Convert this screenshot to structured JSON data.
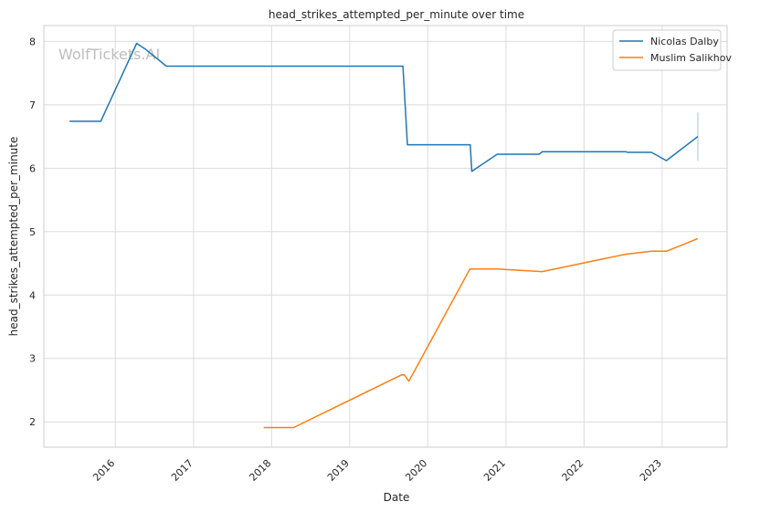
{
  "watermark": "WolfTickets.AI",
  "chart_data": {
    "type": "line",
    "title": "head_strikes_attempted_per_minute over time",
    "xlabel": "Date",
    "ylabel": "head_strikes_attempted_per_minute",
    "x_axis_type": "date",
    "xlim": [
      "2015-02-01",
      "2023-11-01"
    ],
    "ylim": [
      1.6,
      8.25
    ],
    "x_ticks": [
      {
        "date": "2016-01-01",
        "label": "2016"
      },
      {
        "date": "2017-01-01",
        "label": "2017"
      },
      {
        "date": "2018-01-01",
        "label": "2018"
      },
      {
        "date": "2019-01-01",
        "label": "2019"
      },
      {
        "date": "2020-01-01",
        "label": "2020"
      },
      {
        "date": "2021-01-01",
        "label": "2021"
      },
      {
        "date": "2022-01-01",
        "label": "2022"
      },
      {
        "date": "2023-01-01",
        "label": "2023"
      }
    ],
    "y_ticks": [
      2,
      3,
      4,
      5,
      6,
      7,
      8
    ],
    "grid": true,
    "legend_position": "top-right",
    "series": [
      {
        "name": "Nicolas Dalby",
        "color": "#1f77b4",
        "points": [
          [
            "2015-06-01",
            6.74
          ],
          [
            "2015-10-25",
            6.74
          ],
          [
            "2016-04-10",
            7.97
          ],
          [
            "2016-05-20",
            7.88
          ],
          [
            "2016-08-27",
            7.61
          ],
          [
            "2019-09-07",
            7.61
          ],
          [
            "2019-09-28",
            6.37
          ],
          [
            "2020-07-18",
            6.37
          ],
          [
            "2020-07-25",
            5.95
          ],
          [
            "2020-11-21",
            6.22
          ],
          [
            "2021-06-05",
            6.22
          ],
          [
            "2021-06-19",
            6.26
          ],
          [
            "2022-07-16",
            6.26
          ],
          [
            "2022-07-23",
            6.25
          ],
          [
            "2022-11-12",
            6.25
          ],
          [
            "2023-01-21",
            6.12
          ],
          [
            "2023-06-17",
            6.5
          ]
        ]
      },
      {
        "name": "Muslim Salikhov",
        "color": "#ff7f0e",
        "points": [
          [
            "2017-11-25",
            1.91
          ],
          [
            "2018-04-14",
            1.91
          ],
          [
            "2019-08-31",
            2.74
          ],
          [
            "2019-09-14",
            2.74
          ],
          [
            "2019-10-05",
            2.64
          ],
          [
            "2020-07-16",
            4.41
          ],
          [
            "2020-11-21",
            4.41
          ],
          [
            "2021-06-19",
            4.37
          ],
          [
            "2022-07-09",
            4.64
          ],
          [
            "2022-11-12",
            4.69
          ],
          [
            "2023-01-21",
            4.69
          ],
          [
            "2023-06-17",
            4.89
          ]
        ]
      }
    ],
    "error_bar": {
      "series": "Nicolas Dalby",
      "date": "2023-06-17",
      "low": 6.12,
      "high": 6.88,
      "color": "#9ec6e6"
    }
  }
}
